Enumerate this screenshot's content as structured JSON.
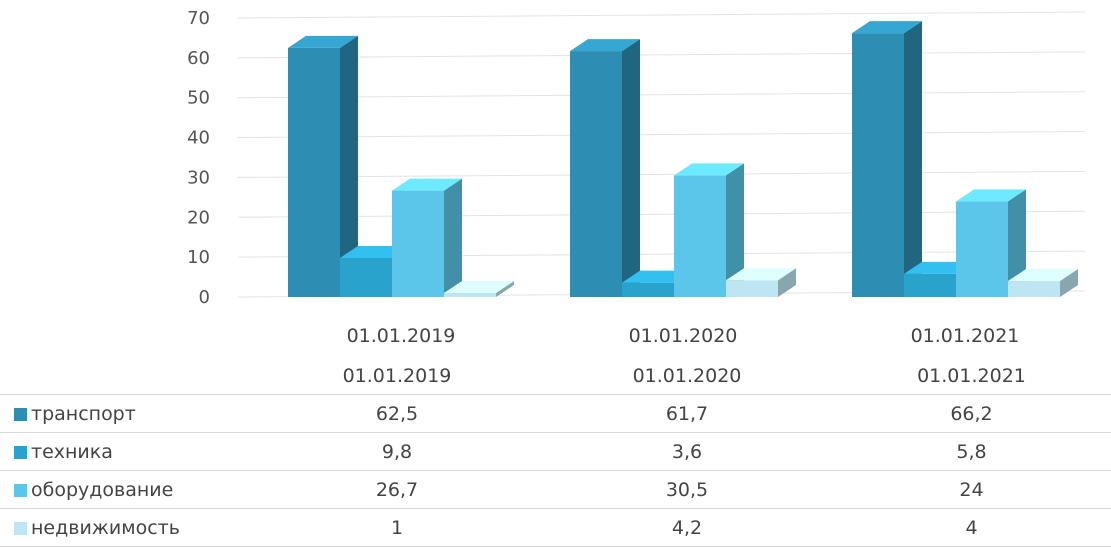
{
  "chart_data": {
    "type": "bar",
    "categories": [
      "01.01.2019",
      "01.01.2020",
      "01.01.2021"
    ],
    "series": [
      {
        "name": "транспорт",
        "values": [
          62.5,
          61.7,
          66.2
        ],
        "color": "#2e8db2"
      },
      {
        "name": "техника",
        "values": [
          9.8,
          3.6,
          5.8
        ],
        "color": "#2aa3cc"
      },
      {
        "name": "оборудование",
        "values": [
          26.7,
          30.5,
          24
        ],
        "color": "#5cc6ea"
      },
      {
        "name": "недвижимость",
        "values": [
          1,
          4.2,
          4
        ],
        "color": "#bde6f2"
      }
    ],
    "value_labels": [
      [
        "62,5",
        "61,7",
        "66,2"
      ],
      [
        "9,8",
        "3,6",
        "5,8"
      ],
      [
        "26,7",
        "30,5",
        "24"
      ],
      [
        "1",
        "4,2",
        "4"
      ]
    ],
    "ylim": [
      0,
      70
    ],
    "yticks": [
      0,
      10,
      20,
      30,
      40,
      50,
      60,
      70
    ],
    "grid": true,
    "legend": "data-table-below",
    "title": "",
    "xlabel": "",
    "ylabel": ""
  }
}
